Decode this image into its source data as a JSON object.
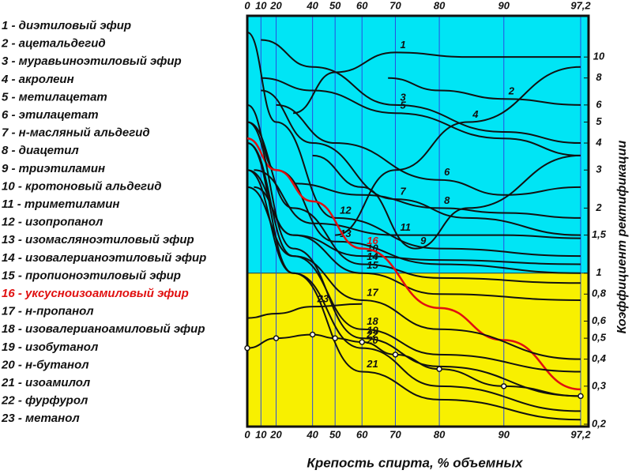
{
  "chart_data": {
    "type": "line",
    "xlabel": "Крепость спирта, % объемных",
    "ylabel": "Коэффициент ректификации",
    "yscale": "log",
    "grid": true,
    "legend": "left",
    "xlim": [
      0,
      97.2
    ],
    "ylim": [
      0.2,
      15
    ],
    "xticks": [
      0,
      10,
      20,
      40,
      50,
      60,
      70,
      80,
      90,
      {
        "value": 97.2,
        "label": "97,2"
      }
    ],
    "yticks": [
      {
        "value": 0.2,
        "label": "0,2"
      },
      {
        "value": 0.3,
        "label": "0,3"
      },
      {
        "value": 0.4,
        "label": "0,4"
      },
      {
        "value": 0.5,
        "label": "0,5"
      },
      {
        "value": 0.6,
        "label": "0,6"
      },
      {
        "value": 0.8,
        "label": "0,8"
      },
      1,
      {
        "value": 1.5,
        "label": "1,5"
      },
      2,
      3,
      4,
      5,
      6,
      8,
      10
    ],
    "series": [
      {
        "name": "1 - диэтиловый эфир",
        "label": "1",
        "color": "#111111",
        "x": [
          30,
          50,
          70,
          85,
          97.2
        ],
        "values": [
          5.5,
          8.5,
          10.5,
          10,
          10
        ]
      },
      {
        "name": "2 - ацетальдегид",
        "label": "2",
        "color": "#111111",
        "x": [
          68,
          80,
          90,
          97.2
        ],
        "values": [
          8,
          7,
          6.4,
          6
        ]
      },
      {
        "name": "3 - муравьиноэтиловый эфир",
        "label": "3",
        "color": "#111111",
        "x": [
          10,
          40,
          70,
          90,
          97.2
        ],
        "values": [
          12,
          9,
          6,
          4.5,
          4
        ]
      },
      {
        "name": "4 - акролеин",
        "label": "4",
        "color": "#111111",
        "x": [
          50,
          70,
          85,
          97.2
        ],
        "values": [
          1.5,
          3,
          5,
          9
        ]
      },
      {
        "name": "5 - метилацетат",
        "label": "5",
        "color": "#111111",
        "x": [
          10,
          40,
          70,
          90,
          97.2
        ],
        "values": [
          8,
          7,
          5.5,
          4.2,
          3.5
        ]
      },
      {
        "name": "6 - этилацетат",
        "label": "6",
        "color": "#111111",
        "x": [
          20,
          50,
          80,
          90,
          97.2
        ],
        "values": [
          6,
          4,
          2.7,
          2.3,
          2.5
        ]
      },
      {
        "name": "7 - н-масляный альдегид",
        "label": "7",
        "color": "#111111",
        "x": [
          10,
          40,
          70,
          85,
          97.2
        ],
        "values": [
          7,
          4,
          2.2,
          1.8,
          1.5
        ]
      },
      {
        "name": "8 - диацетил",
        "label": "8",
        "color": "#111111",
        "x": [
          30,
          60,
          80,
          90,
          97.2
        ],
        "values": [
          2.6,
          2.3,
          2,
          1.9,
          1.8
        ]
      },
      {
        "name": "9 - триэтиламин",
        "label": "9",
        "color": "#111111",
        "x": [
          40,
          60,
          75,
          85,
          97.2
        ],
        "values": [
          3.5,
          2.5,
          1.3,
          2,
          3.5
        ]
      },
      {
        "name": "10 - кротоновый альдегид",
        "label": "10",
        "color": "#111111",
        "x": [
          5,
          30,
          60,
          80,
          97.2
        ],
        "values": [
          2.5,
          1.5,
          1.2,
          1.15,
          1.1
        ]
      },
      {
        "name": "11 - триметиламин",
        "label": "11",
        "color": "#111111",
        "x": [
          5,
          40,
          70,
          90,
          97.2
        ],
        "values": [
          3,
          1.7,
          1.5,
          1.5,
          1.45
        ]
      },
      {
        "name": "12 - изопропанол",
        "label": "12",
        "color": "#111111",
        "x": [
          0,
          20,
          50,
          80,
          97.2
        ],
        "values": [
          13,
          5,
          1.8,
          1.3,
          1.2
        ]
      },
      {
        "name": "13 - изомасляноэтиловый эфир",
        "label": "13",
        "color": "#111111",
        "x": [
          0,
          20,
          50,
          80,
          97.2
        ],
        "values": [
          6,
          3,
          1.4,
          1.1,
          1.0
        ]
      },
      {
        "name": "14 - изовалерианоэтиловый эфир",
        "label": "14",
        "color": "#111111",
        "x": [
          0,
          30,
          60,
          80,
          97.2
        ],
        "values": [
          5,
          2,
          1.1,
          0.95,
          0.9
        ]
      },
      {
        "name": "15 - пропионоэтиловый эфир",
        "label": "15",
        "color": "#111111",
        "x": [
          0,
          30,
          60,
          80,
          97.2
        ],
        "values": [
          3,
          1.5,
          1,
          0.8,
          0.75
        ]
      },
      {
        "name": "16 - уксусноизоамиловый эфир",
        "label": "16",
        "color": "#e01010",
        "x": [
          0,
          20,
          40,
          60,
          80,
          90,
          97.2
        ],
        "values": [
          4.2,
          3,
          2.15,
          1.3,
          0.69,
          0.49,
          0.29
        ]
      },
      {
        "name": "17 - н-пропанол",
        "label": "17",
        "color": "#111111",
        "x": [
          0,
          30,
          60,
          80,
          97.2
        ],
        "values": [
          2.5,
          1.2,
          0.75,
          0.55,
          0.4
        ]
      },
      {
        "name": "18 - изовалерианоамиловый эфир",
        "label": "18",
        "color": "#111111",
        "x": [
          0,
          30,
          60,
          80,
          97.2
        ],
        "values": [
          4,
          1.2,
          0.55,
          0.42,
          0.35
        ]
      },
      {
        "name": "19 - изобутанол",
        "label": "19",
        "color": "#111111",
        "x": [
          0,
          30,
          60,
          80,
          97.2
        ],
        "values": [
          5,
          1.3,
          0.5,
          0.37,
          0.27
        ]
      },
      {
        "name": "20 - н-бутанол",
        "label": "20",
        "color": "#111111",
        "x": [
          0,
          30,
          60,
          80,
          97.2
        ],
        "values": [
          3,
          1,
          0.45,
          0.3,
          0.23
        ]
      },
      {
        "name": "21 - изоамилол",
        "label": "21",
        "color": "#111111",
        "x": [
          0,
          30,
          60,
          80,
          97.2
        ],
        "values": [
          4,
          1,
          0.35,
          0.26,
          0.21
        ]
      },
      {
        "name": "22 - фурфурол",
        "label": "22",
        "color": "#111111",
        "markers": true,
        "x": [
          0,
          20,
          40,
          50,
          60,
          70,
          80,
          90,
          97.2
        ],
        "values": [
          0.45,
          0.5,
          0.52,
          0.5,
          0.48,
          0.42,
          0.36,
          0.3,
          0.27
        ]
      },
      {
        "name": "23 - метанол",
        "label": "23",
        "color": "#111111",
        "x": [
          0,
          20,
          40,
          60
        ],
        "values": [
          0.62,
          0.65,
          0.7,
          0.72
        ]
      }
    ]
  }
}
